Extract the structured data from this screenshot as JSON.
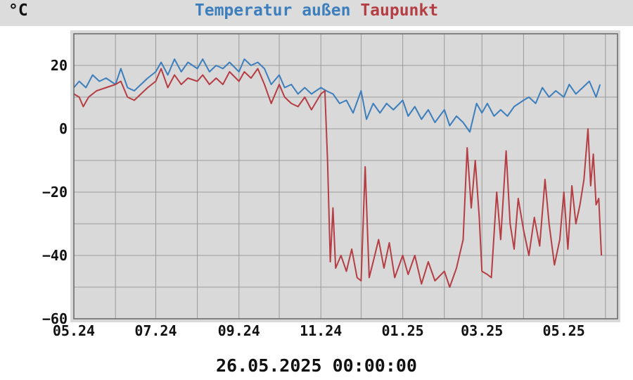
{
  "header": {
    "unit": "°C",
    "legend": [
      "Temperatur außen",
      "Taupunkt"
    ]
  },
  "footer": {
    "timestamp": "26.05.2025 00:00:00"
  },
  "colors": {
    "temperature": "#3d7ebc",
    "dewpoint": "#b53e44",
    "plot_bg": "#d9d9d9",
    "grid": "#9a9a9a"
  },
  "chart_data": {
    "type": "line",
    "title": "",
    "xlabel": "",
    "ylabel": "°C",
    "ylim": [
      -60,
      30
    ],
    "yticks": [
      20,
      0,
      -20,
      -40,
      -60
    ],
    "ytick_labels": [
      "20",
      "0",
      "−20",
      "−40",
      "−60"
    ],
    "xlim": [
      "2024-05-01",
      "2025-06-10"
    ],
    "xticks": [
      "2024-05-01",
      "2024-07-01",
      "2024-09-01",
      "2024-11-01",
      "2025-01-01",
      "2025-03-01",
      "2025-05-01"
    ],
    "xtick_labels": [
      "05.24",
      "07.24",
      "09.24",
      "11.24",
      "01.25",
      "03.25",
      "05.25"
    ],
    "grid": true,
    "legend": "top",
    "series": [
      {
        "name": "Temperatur außen",
        "color": "#3d7ebc",
        "points": [
          [
            "2024-05-01",
            13
          ],
          [
            "2024-05-05",
            15
          ],
          [
            "2024-05-10",
            13
          ],
          [
            "2024-05-15",
            17
          ],
          [
            "2024-05-20",
            15
          ],
          [
            "2024-05-25",
            16
          ],
          [
            "2024-06-01",
            14
          ],
          [
            "2024-06-05",
            19
          ],
          [
            "2024-06-10",
            13
          ],
          [
            "2024-06-15",
            12
          ],
          [
            "2024-06-20",
            14
          ],
          [
            "2024-06-25",
            16
          ],
          [
            "2024-07-01",
            18
          ],
          [
            "2024-07-05",
            21
          ],
          [
            "2024-07-10",
            17
          ],
          [
            "2024-07-15",
            22
          ],
          [
            "2024-07-20",
            18
          ],
          [
            "2024-07-25",
            21
          ],
          [
            "2024-08-01",
            19
          ],
          [
            "2024-08-05",
            22
          ],
          [
            "2024-08-10",
            18
          ],
          [
            "2024-08-15",
            20
          ],
          [
            "2024-08-20",
            19
          ],
          [
            "2024-08-25",
            21
          ],
          [
            "2024-09-01",
            18
          ],
          [
            "2024-09-05",
            22
          ],
          [
            "2024-09-10",
            20
          ],
          [
            "2024-09-15",
            21
          ],
          [
            "2024-09-20",
            19
          ],
          [
            "2024-09-25",
            14
          ],
          [
            "2024-10-01",
            17
          ],
          [
            "2024-10-05",
            13
          ],
          [
            "2024-10-10",
            14
          ],
          [
            "2024-10-15",
            11
          ],
          [
            "2024-10-20",
            13
          ],
          [
            "2024-10-25",
            11
          ],
          [
            "2024-11-01",
            13
          ],
          [
            "2024-11-05",
            12
          ],
          [
            "2024-11-10",
            11
          ],
          [
            "2024-11-15",
            8
          ],
          [
            "2024-11-20",
            9
          ],
          [
            "2024-11-25",
            5
          ],
          [
            "2024-12-01",
            12
          ],
          [
            "2024-12-05",
            3
          ],
          [
            "2024-12-10",
            8
          ],
          [
            "2024-12-15",
            5
          ],
          [
            "2024-12-20",
            8
          ],
          [
            "2024-12-25",
            6
          ],
          [
            "2025-01-01",
            9
          ],
          [
            "2025-01-05",
            4
          ],
          [
            "2025-01-10",
            7
          ],
          [
            "2025-01-15",
            3
          ],
          [
            "2025-01-20",
            6
          ],
          [
            "2025-01-25",
            2
          ],
          [
            "2025-02-01",
            6
          ],
          [
            "2025-02-05",
            1
          ],
          [
            "2025-02-10",
            4
          ],
          [
            "2025-02-15",
            2
          ],
          [
            "2025-02-20",
            -1
          ],
          [
            "2025-02-25",
            8
          ],
          [
            "2025-03-01",
            5
          ],
          [
            "2025-03-05",
            8
          ],
          [
            "2025-03-10",
            4
          ],
          [
            "2025-03-15",
            6
          ],
          [
            "2025-03-20",
            4
          ],
          [
            "2025-03-25",
            7
          ],
          [
            "2025-04-01",
            9
          ],
          [
            "2025-04-05",
            10
          ],
          [
            "2025-04-10",
            8
          ],
          [
            "2025-04-15",
            13
          ],
          [
            "2025-04-20",
            10
          ],
          [
            "2025-04-25",
            12
          ],
          [
            "2025-05-01",
            10
          ],
          [
            "2025-05-05",
            14
          ],
          [
            "2025-05-10",
            11
          ],
          [
            "2025-05-15",
            13
          ],
          [
            "2025-05-20",
            15
          ],
          [
            "2025-05-25",
            10
          ],
          [
            "2025-05-28",
            14
          ]
        ]
      },
      {
        "name": "Taupunkt",
        "color": "#b53e44",
        "points": [
          [
            "2024-05-01",
            11
          ],
          [
            "2024-05-05",
            10
          ],
          [
            "2024-05-08",
            7
          ],
          [
            "2024-05-12",
            10
          ],
          [
            "2024-05-18",
            12
          ],
          [
            "2024-05-25",
            13
          ],
          [
            "2024-06-01",
            14
          ],
          [
            "2024-06-05",
            15
          ],
          [
            "2024-06-10",
            10
          ],
          [
            "2024-06-15",
            9
          ],
          [
            "2024-06-20",
            11
          ],
          [
            "2024-06-25",
            13
          ],
          [
            "2024-07-01",
            15
          ],
          [
            "2024-07-05",
            19
          ],
          [
            "2024-07-10",
            13
          ],
          [
            "2024-07-15",
            17
          ],
          [
            "2024-07-20",
            14
          ],
          [
            "2024-07-25",
            16
          ],
          [
            "2024-08-01",
            15
          ],
          [
            "2024-08-05",
            17
          ],
          [
            "2024-08-10",
            14
          ],
          [
            "2024-08-15",
            16
          ],
          [
            "2024-08-20",
            14
          ],
          [
            "2024-08-25",
            18
          ],
          [
            "2024-09-01",
            15
          ],
          [
            "2024-09-05",
            18
          ],
          [
            "2024-09-10",
            16
          ],
          [
            "2024-09-15",
            19
          ],
          [
            "2024-09-20",
            14
          ],
          [
            "2024-09-25",
            8
          ],
          [
            "2024-10-01",
            14
          ],
          [
            "2024-10-05",
            10
          ],
          [
            "2024-10-10",
            8
          ],
          [
            "2024-10-15",
            7
          ],
          [
            "2024-10-20",
            10
          ],
          [
            "2024-10-25",
            6
          ],
          [
            "2024-11-01",
            11
          ],
          [
            "2024-11-04",
            12
          ],
          [
            "2024-11-06",
            -10
          ],
          [
            "2024-11-08",
            -42
          ],
          [
            "2024-11-10",
            -25
          ],
          [
            "2024-11-12",
            -44
          ],
          [
            "2024-11-16",
            -40
          ],
          [
            "2024-11-20",
            -45
          ],
          [
            "2024-11-24",
            -38
          ],
          [
            "2024-11-28",
            -47
          ],
          [
            "2024-12-01",
            -48
          ],
          [
            "2024-12-04",
            -12
          ],
          [
            "2024-12-07",
            -47
          ],
          [
            "2024-12-10",
            -42
          ],
          [
            "2024-12-14",
            -35
          ],
          [
            "2024-12-18",
            -44
          ],
          [
            "2024-12-22",
            -36
          ],
          [
            "2024-12-26",
            -47
          ],
          [
            "2025-01-01",
            -40
          ],
          [
            "2025-01-05",
            -46
          ],
          [
            "2025-01-10",
            -40
          ],
          [
            "2025-01-15",
            -49
          ],
          [
            "2025-01-20",
            -42
          ],
          [
            "2025-01-25",
            -48
          ],
          [
            "2025-02-01",
            -45
          ],
          [
            "2025-02-05",
            -50
          ],
          [
            "2025-02-10",
            -44
          ],
          [
            "2025-02-15",
            -35
          ],
          [
            "2025-02-18",
            -6
          ],
          [
            "2025-02-21",
            -25
          ],
          [
            "2025-02-24",
            -10
          ],
          [
            "2025-02-27",
            -28
          ],
          [
            "2025-03-01",
            -45
          ],
          [
            "2025-03-05",
            -46
          ],
          [
            "2025-03-08",
            -47
          ],
          [
            "2025-03-12",
            -20
          ],
          [
            "2025-03-15",
            -35
          ],
          [
            "2025-03-19",
            -7
          ],
          [
            "2025-03-22",
            -30
          ],
          [
            "2025-03-25",
            -38
          ],
          [
            "2025-03-28",
            -22
          ],
          [
            "2025-04-01",
            -32
          ],
          [
            "2025-04-05",
            -40
          ],
          [
            "2025-04-09",
            -28
          ],
          [
            "2025-04-13",
            -37
          ],
          [
            "2025-04-17",
            -16
          ],
          [
            "2025-04-20",
            -30
          ],
          [
            "2025-04-24",
            -43
          ],
          [
            "2025-04-28",
            -35
          ],
          [
            "2025-05-01",
            -20
          ],
          [
            "2025-05-04",
            -38
          ],
          [
            "2025-05-07",
            -18
          ],
          [
            "2025-05-10",
            -30
          ],
          [
            "2025-05-13",
            -24
          ],
          [
            "2025-05-16",
            -16
          ],
          [
            "2025-05-19",
            0
          ],
          [
            "2025-05-21",
            -18
          ],
          [
            "2025-05-23",
            -8
          ],
          [
            "2025-05-25",
            -24
          ],
          [
            "2025-05-27",
            -22
          ],
          [
            "2025-05-29",
            -40
          ]
        ]
      }
    ]
  }
}
